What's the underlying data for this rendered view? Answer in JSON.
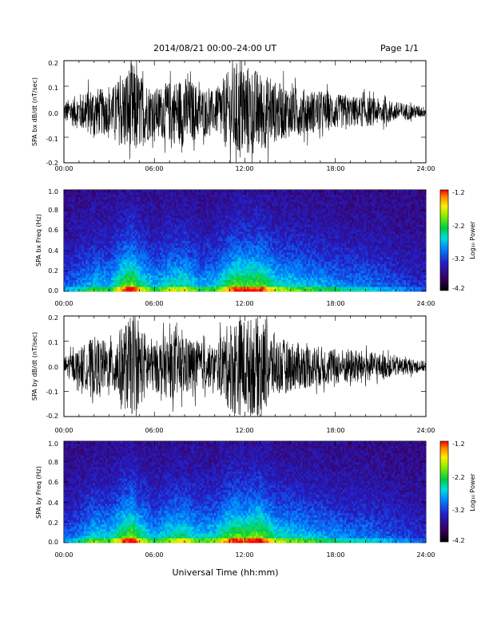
{
  "header": {
    "title": "2014/08/21   00:00–24:00 UT",
    "page": "Page 1/1"
  },
  "chart_data": [
    {
      "type": "line",
      "title": "",
      "xlabel": "",
      "ylabel": "SPA bx dB/dt (nT/sec)",
      "xlim": [
        0,
        24
      ],
      "ylim": [
        -0.2,
        0.2
      ],
      "x_tick_labels": [
        "00:00",
        "06:00",
        "12:00",
        "18:00",
        "24:00"
      ],
      "y_tick_labels": [
        "-0.2",
        "-0.1",
        "0.0",
        "0.1",
        "0.2"
      ],
      "series": [
        {
          "x": [
            0,
            1,
            2,
            3,
            4,
            4.5,
            5,
            6,
            7,
            8,
            9,
            10,
            11,
            11.5,
            12,
            13,
            14,
            15,
            16,
            17,
            18,
            19,
            20,
            21,
            22,
            23,
            24
          ],
          "amplitude": [
            0.04,
            0.07,
            0.1,
            0.08,
            0.16,
            0.2,
            0.15,
            0.09,
            0.12,
            0.14,
            0.1,
            0.08,
            0.17,
            0.2,
            0.19,
            0.16,
            0.12,
            0.1,
            0.09,
            0.08,
            0.07,
            0.06,
            0.06,
            0.05,
            0.04,
            0.03,
            0.02
          ]
        }
      ]
    },
    {
      "type": "heatmap",
      "title": "",
      "ylabel": "SPA bx Freq (Hz)",
      "xlim": [
        0,
        24
      ],
      "ylim": [
        0,
        1.0
      ],
      "x_tick_labels": [
        "00:00",
        "06:00",
        "12:00",
        "18:00",
        "24:00"
      ],
      "y_tick_labels": [
        "0.0",
        "0.2",
        "0.4",
        "0.6",
        "0.8",
        "1.0"
      ],
      "colorbar": {
        "label": "Log₁₀ Power",
        "range": [
          -4.2,
          -1.2
        ],
        "ticks": [
          "-4.2",
          "-3.2",
          "-2.2",
          "-1.2"
        ]
      },
      "activity": {
        "x": [
          0,
          1,
          2,
          3,
          4,
          4.5,
          5,
          6,
          7,
          8,
          9,
          10,
          11,
          11.5,
          12,
          13,
          14,
          15,
          16,
          17,
          18,
          19,
          20,
          21,
          22,
          23,
          24
        ],
        "level": [
          0.3,
          0.4,
          0.55,
          0.5,
          0.85,
          0.95,
          0.75,
          0.5,
          0.65,
          0.7,
          0.5,
          0.55,
          0.8,
          0.9,
          0.85,
          0.9,
          0.65,
          0.6,
          0.55,
          0.5,
          0.45,
          0.4,
          0.4,
          0.35,
          0.3,
          0.25,
          0.2
        ]
      }
    },
    {
      "type": "line",
      "title": "",
      "xlabel": "",
      "ylabel": "SPA by dB/dt (nT/sec)",
      "xlim": [
        0,
        24
      ],
      "ylim": [
        -0.2,
        0.2
      ],
      "x_tick_labels": [
        "00:00",
        "06:00",
        "12:00",
        "18:00",
        "24:00"
      ],
      "y_tick_labels": [
        "-0.2",
        "-0.1",
        "0.0",
        "0.1",
        "0.2"
      ],
      "series": [
        {
          "x": [
            0,
            1,
            2,
            3,
            4,
            4.5,
            5,
            6,
            7,
            8,
            9,
            10,
            11,
            11.5,
            12,
            13,
            14,
            15,
            16,
            17,
            18,
            19,
            20,
            21,
            22,
            23,
            24
          ],
          "amplitude": [
            0.04,
            0.07,
            0.12,
            0.09,
            0.17,
            0.2,
            0.16,
            0.1,
            0.13,
            0.12,
            0.1,
            0.08,
            0.18,
            0.2,
            0.19,
            0.2,
            0.12,
            0.1,
            0.09,
            0.08,
            0.07,
            0.07,
            0.06,
            0.05,
            0.04,
            0.03,
            0.02
          ]
        }
      ]
    },
    {
      "type": "heatmap",
      "title": "",
      "ylabel": "SPA by Freq (Hz)",
      "xlim": [
        0,
        24
      ],
      "ylim": [
        0,
        1.0
      ],
      "x_tick_labels": [
        "00:00",
        "06:00",
        "12:00",
        "18:00",
        "24:00"
      ],
      "y_tick_labels": [
        "0.0",
        "0.2",
        "0.4",
        "0.6",
        "0.8",
        "1.0"
      ],
      "colorbar": {
        "label": "Log₁₀ Power",
        "range": [
          -4.2,
          -1.2
        ],
        "ticks": [
          "-4.2",
          "-3.2",
          "-2.2",
          "-1.2"
        ]
      },
      "activity": {
        "x": [
          0,
          1,
          2,
          3,
          4,
          4.5,
          5,
          6,
          7,
          8,
          9,
          10,
          11,
          11.5,
          12,
          13,
          14,
          15,
          16,
          17,
          18,
          19,
          20,
          21,
          22,
          23,
          24
        ],
        "level": [
          0.3,
          0.4,
          0.6,
          0.55,
          0.85,
          0.95,
          0.75,
          0.5,
          0.65,
          0.7,
          0.55,
          0.6,
          0.85,
          0.9,
          0.85,
          0.95,
          0.65,
          0.6,
          0.55,
          0.5,
          0.45,
          0.4,
          0.4,
          0.35,
          0.3,
          0.25,
          0.2
        ]
      }
    }
  ],
  "footer": {
    "xlabel": "Universal Time (hh:mm)"
  }
}
